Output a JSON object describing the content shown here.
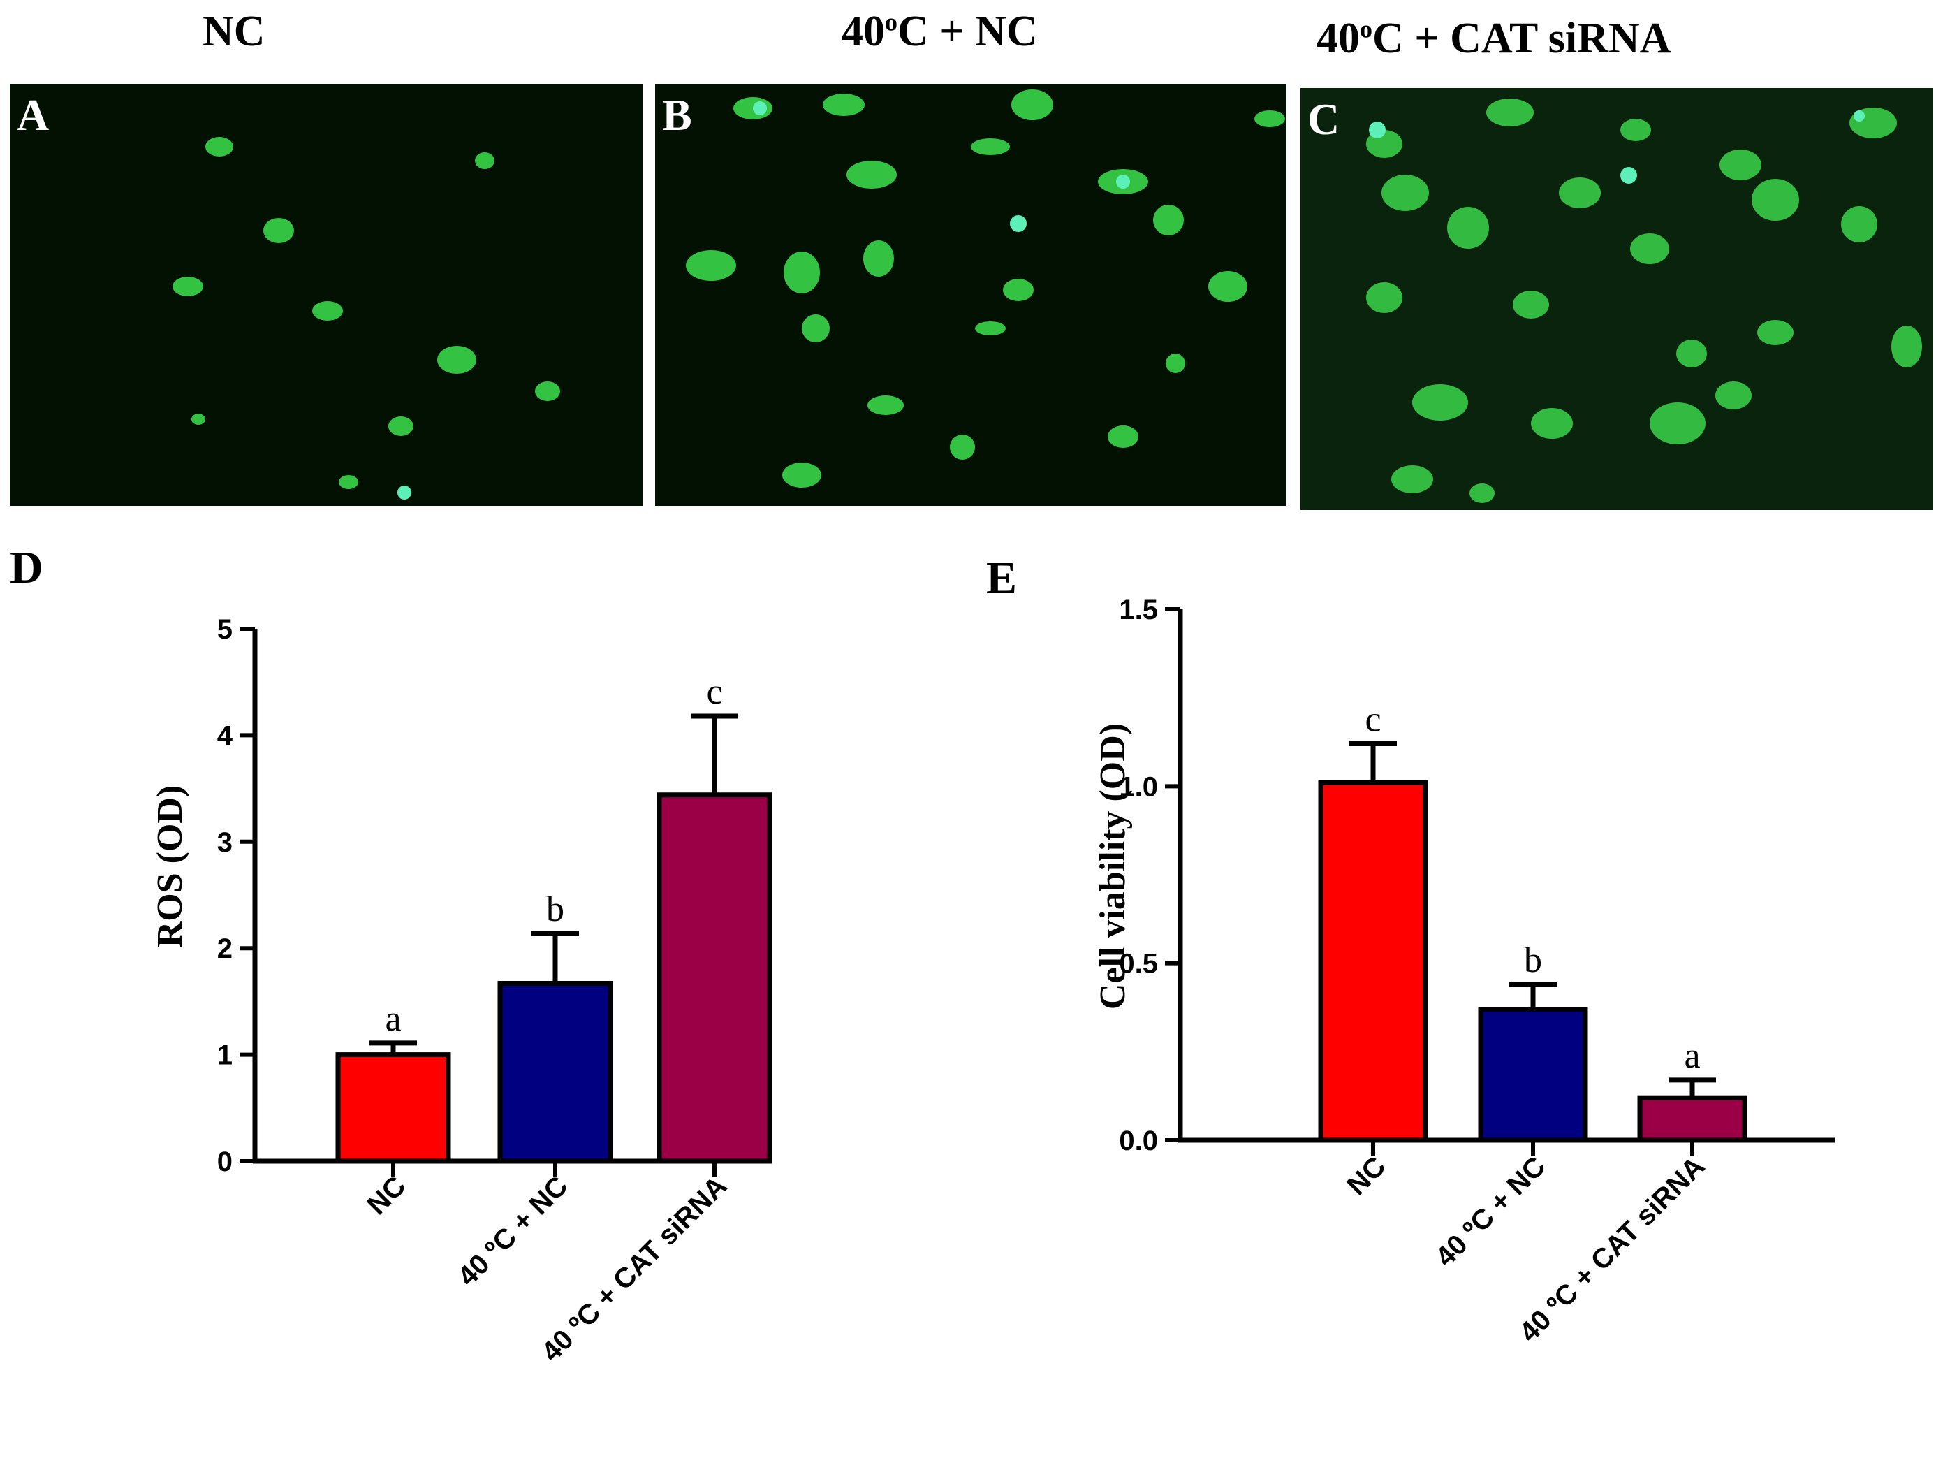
{
  "panels": {
    "a": {
      "letter": "A",
      "title": "NC"
    },
    "b": {
      "letter": "B",
      "title": "40ºC + NC",
      "title_main": "40",
      "title_sup": "o",
      "title_rest": "C + NC"
    },
    "c": {
      "letter": "C",
      "title": "40ºC + CAT siRNA",
      "title_main": "40",
      "title_sup": "o",
      "title_rest": "C + CAT siRNA"
    },
    "d": {
      "letter": "D"
    },
    "e": {
      "letter": "E"
    }
  },
  "colors": {
    "nc": "#ff0000",
    "heat_nc": "#000080",
    "heat_cat": "#9b0047",
    "cells": "#3cd84a",
    "background_micro": "#031103"
  },
  "chart_data": [
    {
      "type": "bar",
      "panel": "D",
      "categories": [
        "NC",
        "40 ºC + NC",
        "40 ºC + CAT siRNA"
      ],
      "values": [
        1.0,
        1.67,
        3.44
      ],
      "errors": [
        0.11,
        0.47,
        0.74
      ],
      "significance": [
        "a",
        "b",
        "c"
      ],
      "ylabel": "ROS (OD)",
      "ylim": [
        0,
        5
      ],
      "yticks": [
        "0",
        "1",
        "2",
        "3",
        "4",
        "5"
      ],
      "ytick_values": [
        0,
        1,
        2,
        3,
        4,
        5
      ],
      "grid": false,
      "legend": "none"
    },
    {
      "type": "bar",
      "panel": "E",
      "categories": [
        "NC",
        "40 ºC + NC",
        "40 ºC + CAT siRNA"
      ],
      "values": [
        1.01,
        0.37,
        0.12
      ],
      "errors": [
        0.11,
        0.07,
        0.05
      ],
      "significance": [
        "c",
        "b",
        "a"
      ],
      "ylabel": "Cell viability (OD)",
      "ylim": [
        0,
        1.5
      ],
      "yticks": [
        "0.0",
        "0.5",
        "1.0",
        "1.5"
      ],
      "ytick_values": [
        0,
        0.5,
        1.0,
        1.5
      ],
      "grid": false,
      "legend": "none"
    }
  ]
}
